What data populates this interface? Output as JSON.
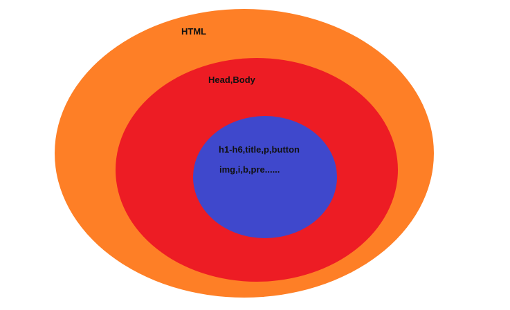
{
  "diagram": {
    "outer": {
      "label": "HTML",
      "color": "#fe7f26"
    },
    "middle": {
      "label": "Head,Body",
      "color": "#ed1c24"
    },
    "inner": {
      "lines": [
        "h1-h6,title,p,button",
        "img,i,b,pre......"
      ],
      "color": "#3f48cc"
    }
  }
}
